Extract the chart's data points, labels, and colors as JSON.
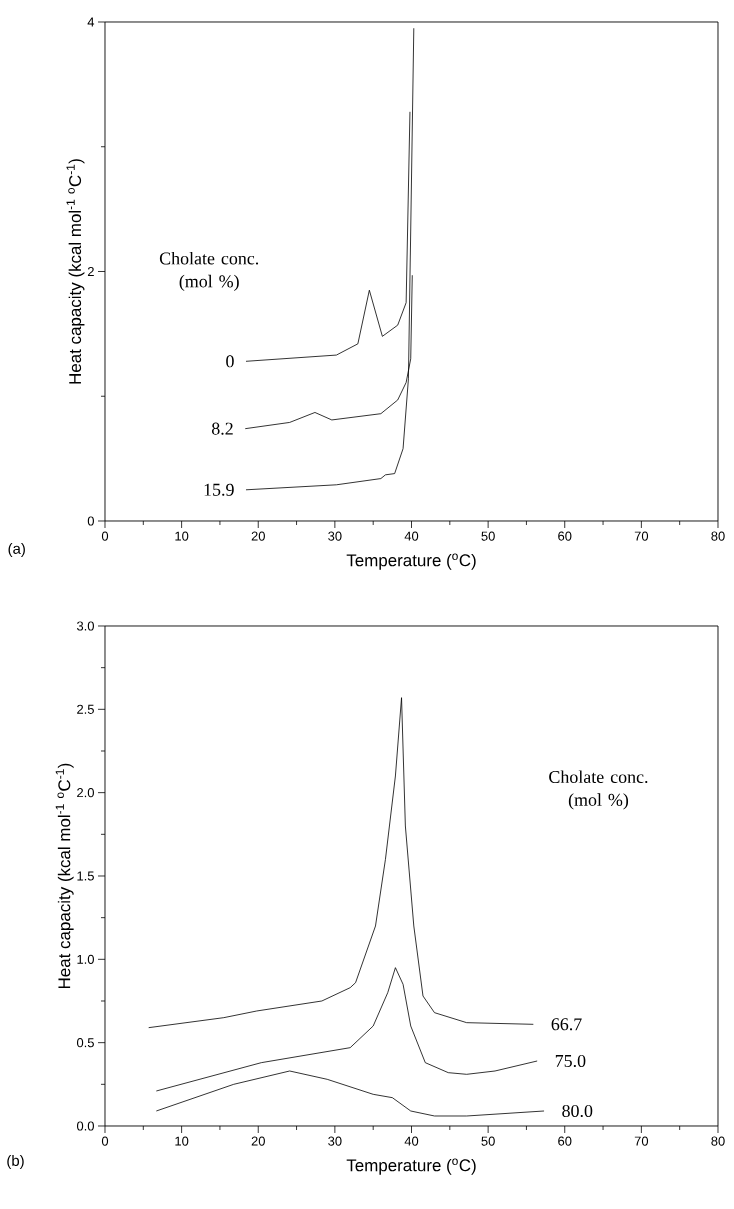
{
  "chart_data": [
    {
      "type": "line",
      "xlabel": "Temperature ($^{o}$C)",
      "ylabel": "Heat capacity (kcal mol$^{-1}$ $^{o}$C$^{-1}$)",
      "legend_title": "Cholate conc. (mol %)",
      "annotations": [
        "(a)"
      ],
      "xlim": [
        0,
        80
      ],
      "ylim": [
        0,
        4
      ],
      "xticks": [
        0,
        {
          "value": 5,
          "label": null
        },
        10,
        {
          "value": 15,
          "label": null
        },
        20,
        {
          "value": 25,
          "label": null
        },
        30,
        {
          "value": 35,
          "label": null
        },
        40,
        {
          "value": 45,
          "label": null
        },
        50,
        {
          "value": 55,
          "label": null
        },
        60,
        {
          "value": 65,
          "label": null
        },
        70,
        {
          "value": 75,
          "label": null
        },
        80
      ],
      "yticks": [
        0,
        {
          "value": 1,
          "label": null
        },
        2,
        {
          "value": 3,
          "label": null
        },
        4
      ],
      "series": [
        {
          "name": "0",
          "color": "#000000",
          "x": [
            18.4,
            30.2,
            33.0,
            34.5,
            36.2,
            38.2,
            39.3,
            39.8
          ],
          "values": [
            1.28,
            1.33,
            1.42,
            1.85,
            1.48,
            1.57,
            1.75,
            3.28
          ]
        },
        {
          "name": "8.2",
          "color": "#000000",
          "x": [
            18.3,
            24.1,
            27.4,
            29.6,
            36.0,
            38.2,
            39.3,
            39.9,
            40.1
          ],
          "values": [
            0.74,
            0.79,
            0.87,
            0.81,
            0.86,
            0.97,
            1.11,
            1.3,
            1.97
          ]
        },
        {
          "name": "15.9",
          "color": "#000000",
          "x": [
            18.4,
            30.2,
            36.0,
            36.6,
            37.8,
            38.9,
            39.6,
            40.3
          ],
          "values": [
            0.25,
            0.29,
            0.34,
            0.37,
            0.38,
            0.58,
            1.14,
            3.95
          ]
        }
      ]
    },
    {
      "type": "line",
      "xlabel": "Temperature ($^{o}$C)",
      "ylabel": "Heat capacity (kcal mol$^{-1}$ $^{o}$C$^{-1}$)",
      "legend_title": "Cholate conc. (mol %)",
      "annotations": [
        "(b)"
      ],
      "xlim": [
        0,
        80
      ],
      "ylim": [
        0,
        3
      ],
      "xticks": [
        0,
        {
          "value": 5,
          "label": null
        },
        10,
        {
          "value": 15,
          "label": null
        },
        20,
        {
          "value": 25,
          "label": null
        },
        30,
        {
          "value": 35,
          "label": null
        },
        40,
        {
          "value": 45,
          "label": null
        },
        50,
        {
          "value": 55,
          "label": null
        },
        60,
        {
          "value": 65,
          "label": null
        },
        70,
        {
          "value": 75,
          "label": null
        },
        80
      ],
      "yticks": [
        {
          "value": 0,
          "label": "0.0"
        },
        {
          "value": 0.25,
          "label": null
        },
        {
          "value": 0.5,
          "label": "0.5"
        },
        {
          "value": 0.75,
          "label": null
        },
        {
          "value": 1,
          "label": "1.0"
        },
        {
          "value": 1.25,
          "label": null
        },
        {
          "value": 1.5,
          "label": "1.5"
        },
        {
          "value": 1.75,
          "label": null
        },
        {
          "value": 2,
          "label": "2.0"
        },
        {
          "value": 2.25,
          "label": null
        },
        {
          "value": 2.5,
          "label": "2.5"
        },
        {
          "value": 2.75,
          "label": null
        },
        {
          "value": 3,
          "label": "3.0"
        }
      ],
      "series": [
        {
          "name": "66.7",
          "color": "#000000",
          "x": [
            5.7,
            15.5,
            19.8,
            28.3,
            32.0,
            32.7,
            35.3,
            36.6,
            37.9,
            38.7,
            39.2,
            40.3,
            41.5,
            43.0,
            47.2,
            55.9
          ],
          "values": [
            0.59,
            0.65,
            0.69,
            0.75,
            0.83,
            0.86,
            1.2,
            1.6,
            2.1,
            2.57,
            1.8,
            1.2,
            0.78,
            0.68,
            0.62,
            0.61
          ]
        },
        {
          "name": "75.0",
          "color": "#000000",
          "x": [
            6.7,
            20.4,
            32.0,
            35.0,
            36.9,
            37.9,
            38.9,
            39.9,
            41.8,
            44.8,
            47.2,
            50.9,
            56.4
          ],
          "values": [
            0.21,
            0.38,
            0.47,
            0.6,
            0.8,
            0.95,
            0.85,
            0.6,
            0.38,
            0.32,
            0.31,
            0.33,
            0.39
          ]
        },
        {
          "name": "80.0",
          "color": "#000000",
          "x": [
            6.7,
            16.8,
            24.1,
            29.0,
            35.0,
            37.5,
            39.9,
            43.0,
            47.2,
            57.3
          ],
          "values": [
            0.09,
            0.25,
            0.33,
            0.28,
            0.19,
            0.17,
            0.09,
            0.06,
            0.06,
            0.09
          ]
        }
      ]
    }
  ]
}
